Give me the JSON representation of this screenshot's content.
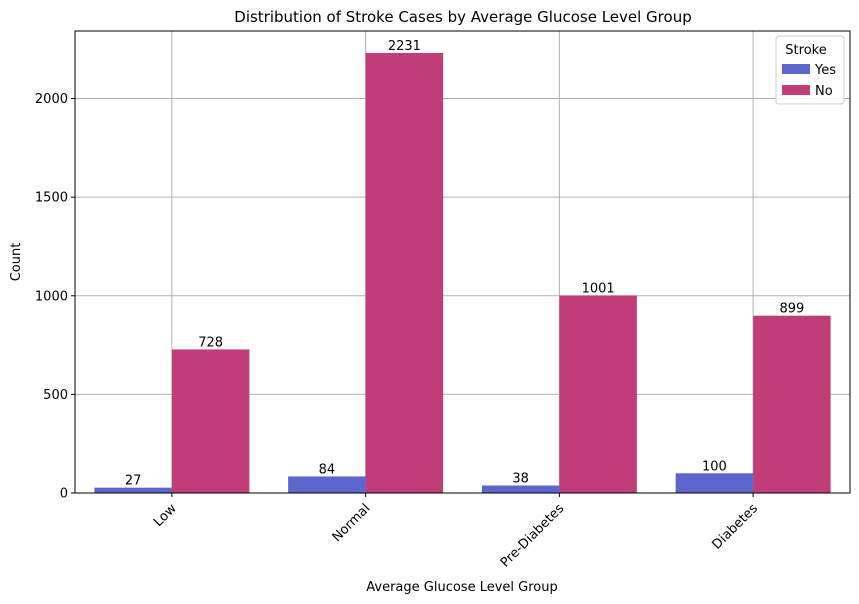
{
  "chart_data": {
    "type": "bar",
    "title": "Distribution of Stroke Cases by Average Glucose Level Group",
    "xlabel": "Average Glucose Level Group",
    "ylabel": "Count",
    "categories": [
      "Low",
      "Normal",
      "Pre-Diabetes",
      "Diabetes"
    ],
    "series": [
      {
        "name": "Yes",
        "values": [
          27,
          84,
          38,
          100
        ],
        "color": "#5c66cc"
      },
      {
        "name": "No",
        "values": [
          728,
          2231,
          1001,
          899
        ],
        "color": "#c13d78"
      }
    ],
    "ylim": [
      0,
      2342.55
    ],
    "yticks": [
      0,
      500,
      1000,
      1500,
      2000
    ],
    "grid": true,
    "legend": {
      "title": "Stroke",
      "position": "top-right"
    },
    "xtick_rotation": 45
  }
}
